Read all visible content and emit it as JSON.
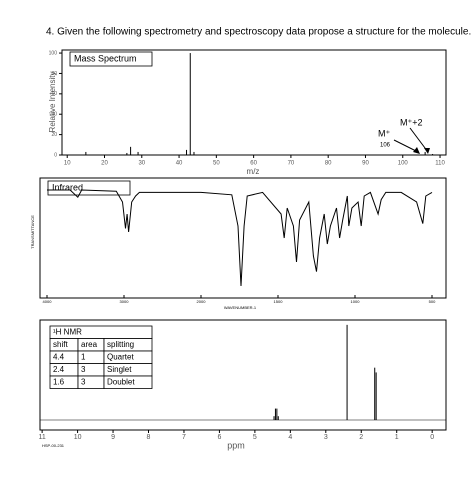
{
  "question": "4.  Given the following spectrometry and spectroscopy data propose a structure for the molecule.",
  "mass_spectrum": {
    "type": "bar",
    "title": "Mass Spectrum",
    "y_label": "Relative Intensity",
    "x_label": "m/z",
    "x": [
      15,
      26,
      27,
      29,
      42,
      43,
      44,
      106,
      108
    ],
    "values": [
      3,
      2,
      8,
      3,
      5,
      100,
      3,
      3,
      1
    ],
    "color": "#000000",
    "xlim": [
      8.6,
      111.6
    ],
    "ylim": [
      0,
      103
    ],
    "xticks": [
      10,
      20,
      30,
      40,
      50,
      60,
      70,
      80,
      90,
      100,
      110
    ],
    "yticks": [
      0,
      20,
      40,
      60,
      80,
      100
    ],
    "annotations": [
      "M⁺+2",
      "M⁺",
      "106"
    ]
  },
  "infrared": {
    "type": "line",
    "title": "Infrared",
    "y_label": "TRANSMITTANCE",
    "x_label": "WAVENUMBER-1",
    "color": "#000000",
    "x": [
      4000,
      3700,
      3600,
      3550,
      3100,
      3020,
      2980,
      2960,
      2940,
      2900,
      2850,
      2800,
      2400,
      2000,
      1800,
      1760,
      1740,
      1720,
      1700,
      1600,
      1480,
      1460,
      1440,
      1400,
      1380,
      1360,
      1300,
      1270,
      1250,
      1230,
      1200,
      1180,
      1160,
      1120,
      1100,
      1080,
      1050,
      1040,
      1020,
      980,
      960,
      940,
      900,
      850,
      830,
      800,
      700,
      600,
      560,
      540,
      500
    ],
    "values": [
      90,
      90,
      84,
      90,
      89,
      80,
      58,
      70,
      55,
      80,
      85,
      88,
      88,
      88,
      86,
      60,
      10,
      60,
      85,
      88,
      70,
      50,
      75,
      60,
      30,
      65,
      80,
      35,
      22,
      50,
      70,
      45,
      60,
      75,
      50,
      65,
      85,
      60,
      75,
      80,
      60,
      85,
      88,
      70,
      82,
      88,
      88,
      80,
      62,
      85,
      88
    ],
    "ylim": [
      0,
      100
    ],
    "xticks": [
      4000,
      3000,
      2000,
      1500,
      1000,
      500
    ]
  },
  "nmr": {
    "type": "stem",
    "x_label": "ppm",
    "code": "HSP-00-231",
    "color": "#000000",
    "x": [
      4.46,
      4.42,
      4.38,
      4.34,
      2.4,
      1.62,
      1.58
    ],
    "values": [
      4,
      12,
      12,
      4,
      100,
      55,
      50
    ],
    "xlim": [
      11.06,
      -0.39
    ],
    "ylim": [
      0,
      103
    ],
    "xticks": [
      11,
      10,
      9,
      8,
      7,
      6,
      5,
      4,
      3,
      2,
      1,
      0
    ],
    "table": {
      "title": "¹H NMR",
      "header": [
        "shift",
        "area",
        "splitting"
      ],
      "rows": [
        [
          "4.4",
          "1",
          "Quartet"
        ],
        [
          "2.4",
          "3",
          "Singlet"
        ],
        [
          "1.6",
          "3",
          "Doublet"
        ]
      ]
    }
  }
}
